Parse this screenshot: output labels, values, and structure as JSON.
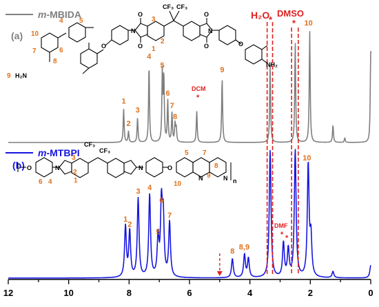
{
  "chart_data": {
    "type": "line",
    "xlabel": "",
    "ylabel": "",
    "xlim": [
      12,
      0
    ],
    "x_reversed": true,
    "x_ticks": [
      "12",
      "10",
      "8",
      "6",
      "4",
      "2",
      "0"
    ],
    "series": [
      {
        "name": "m-MBIDA",
        "panel": "(a)",
        "color": "#7f7f7f",
        "peaks": [
          {
            "x": 8.18,
            "h": 0.3,
            "label": "1"
          },
          {
            "x": 8.02,
            "h": 0.1,
            "label": "2"
          },
          {
            "x": 7.72,
            "h": 0.22,
            "label": "3"
          },
          {
            "x": 7.34,
            "h": 0.7,
            "label": "4"
          },
          {
            "x": 6.9,
            "h": 0.62,
            "label": "5"
          },
          {
            "x": 6.85,
            "h": 0.58,
            "label": ""
          },
          {
            "x": 6.72,
            "h": 0.37,
            "label": "6"
          },
          {
            "x": 6.58,
            "h": 0.26,
            "label": "7"
          },
          {
            "x": 6.48,
            "h": 0.16,
            "label": "8"
          },
          {
            "x": 6.44,
            "h": 0.13,
            "label": ""
          },
          {
            "x": 5.76,
            "h": 0.28,
            "label": "DCM"
          },
          {
            "x": 4.92,
            "h": 0.58,
            "label": "9"
          },
          {
            "x": 3.33,
            "h": 0.7,
            "label": "H2O"
          },
          {
            "x": 2.5,
            "h": 0.9,
            "label": "DMSO"
          },
          {
            "x": 2.02,
            "h": 1.0,
            "label": "10"
          },
          {
            "x": 1.25,
            "h": 0.16,
            "label": ""
          },
          {
            "x": 0.86,
            "h": 0.04,
            "label": ""
          },
          {
            "x": 0.0,
            "h": 0.82,
            "label": ""
          }
        ]
      },
      {
        "name": "m-MTBPI",
        "panel": "(b)",
        "color": "#1515e0",
        "peaks": [
          {
            "x": 8.12,
            "h": 0.4,
            "label": "1"
          },
          {
            "x": 7.98,
            "h": 0.36,
            "label": "2"
          },
          {
            "x": 7.7,
            "h": 0.62,
            "label": "3"
          },
          {
            "x": 7.32,
            "h": 0.65,
            "label": "4"
          },
          {
            "x": 7.04,
            "h": 0.3,
            "label": "5"
          },
          {
            "x": 6.93,
            "h": 0.55,
            "label": "6"
          },
          {
            "x": 6.87,
            "h": 0.45,
            "label": ""
          },
          {
            "x": 6.66,
            "h": 0.43,
            "label": "7"
          },
          {
            "x": 4.58,
            "h": 0.15,
            "label": "8"
          },
          {
            "x": 4.18,
            "h": 0.18,
            "label": "8,9"
          },
          {
            "x": 4.05,
            "h": 0.15,
            "label": ""
          },
          {
            "x": 3.33,
            "h": 1.0,
            "label": ""
          },
          {
            "x": 2.89,
            "h": 0.27,
            "label": "DMF"
          },
          {
            "x": 2.73,
            "h": 0.22,
            "label": ""
          },
          {
            "x": 2.5,
            "h": 1.0,
            "label": ""
          },
          {
            "x": 2.07,
            "h": 0.88,
            "label": "10"
          },
          {
            "x": 1.98,
            "h": 0.3,
            "label": ""
          },
          {
            "x": 1.25,
            "h": 0.05,
            "label": ""
          },
          {
            "x": 0.0,
            "h": 0.1,
            "label": ""
          }
        ]
      }
    ],
    "annotations": {
      "h2o": "H₂O",
      "dmso": "DMSO",
      "dcm": "DCM",
      "dmf": "DMF",
      "star": "*",
      "legend_a_prefix": "m",
      "legend_a_suffix": "-MBIDA",
      "legend_a_panel": "(a)",
      "legend_b_prefix": "m",
      "legend_b_suffix": "-MTBPI",
      "legend_b_panel": "(b)"
    },
    "structure_labels": {
      "a": [
        "1",
        "2",
        "3",
        "4",
        "5",
        "6",
        "7",
        "8",
        "9",
        "10"
      ],
      "b": [
        "1",
        "2",
        "3",
        "4",
        "5",
        "6",
        "7",
        "8",
        "9",
        "10"
      ]
    },
    "atoms": {
      "O": "O",
      "N": "N",
      "CF3": "CF₃",
      "NH2": "NH₂",
      "H2N": "H₂N",
      "n": "n"
    },
    "colors": {
      "a": "#7f7f7f",
      "b": "#1515e0",
      "labels": "#e0701a",
      "solvent": "#e02020"
    }
  }
}
